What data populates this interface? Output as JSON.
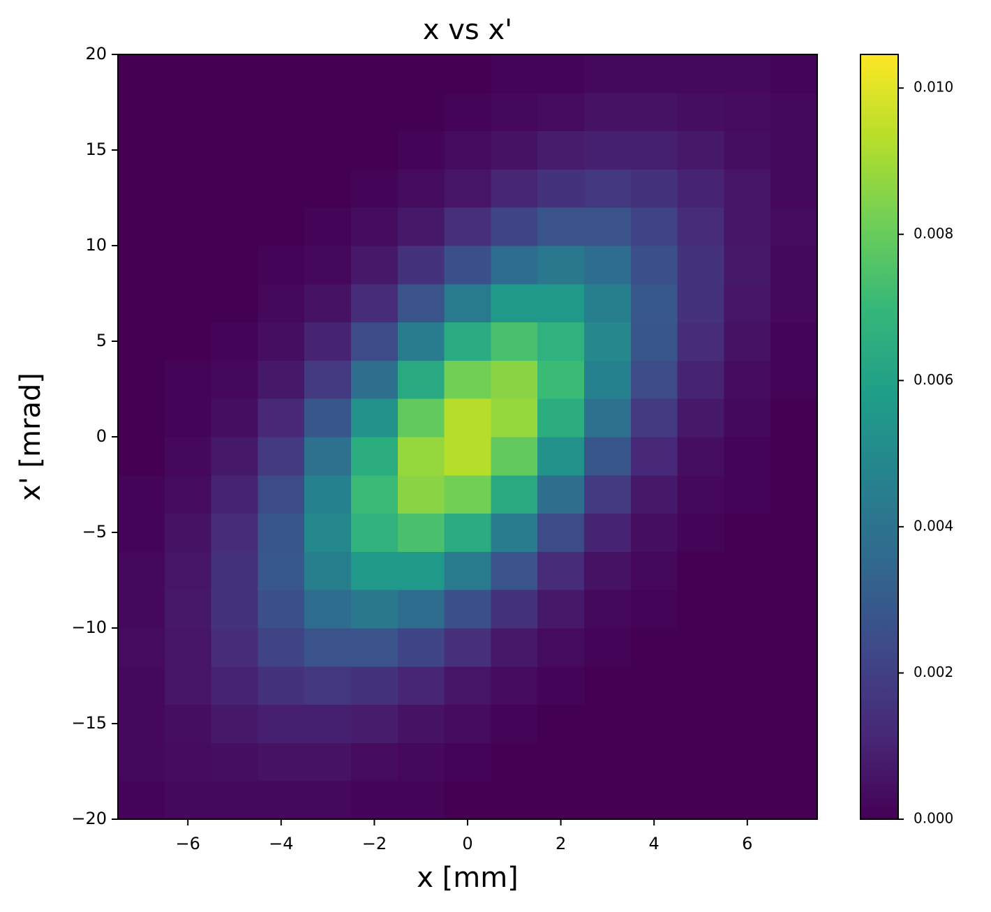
{
  "chart_data": {
    "type": "heatmap",
    "title": "x vs x'",
    "xlabel": "x [mm]",
    "ylabel": "x' [mrad]",
    "xlim": [
      -7.5,
      7.5
    ],
    "ylim": [
      -20,
      20
    ],
    "xticks": [
      {
        "value": -6,
        "label": "−6"
      },
      {
        "value": -4,
        "label": "−4"
      },
      {
        "value": -2,
        "label": "−2"
      },
      0,
      2,
      4,
      6
    ],
    "yticks": [
      {
        "value": -20,
        "label": "−20"
      },
      {
        "value": -15,
        "label": "−15"
      },
      {
        "value": -10,
        "label": "−10"
      },
      {
        "value": -5,
        "label": "−5"
      },
      0,
      5,
      10,
      15,
      20
    ],
    "x_bins": [
      -7.5,
      -6.5,
      -5.5,
      -4.5,
      -3.5,
      -2.5,
      -1.5,
      -0.5,
      0.5,
      1.5,
      2.5,
      3.5,
      4.5,
      5.5,
      6.5,
      7.5
    ],
    "y_bins": [
      -20,
      -18,
      -16,
      -14,
      -12,
      -10,
      -8,
      -6,
      -4,
      -2,
      0,
      2,
      4,
      6,
      8,
      10,
      12,
      14,
      16,
      18,
      20
    ],
    "z": [
      [
        0.0001,
        0.0002,
        0.0002,
        0.0002,
        0.0002,
        0.0001,
        0.0001,
        0,
        0,
        0,
        0,
        0,
        0,
        0,
        0
      ],
      [
        0.0002,
        0.0003,
        0.0004,
        0.0005,
        0.0005,
        0.0003,
        0.0002,
        0.0001,
        0,
        0,
        0,
        0,
        0,
        0,
        0
      ],
      [
        0.0002,
        0.0004,
        0.0007,
        0.0009,
        0.0009,
        0.0008,
        0.0005,
        0.0003,
        0.0001,
        0,
        0,
        0,
        0,
        0,
        0
      ],
      [
        0.0002,
        0.0006,
        0.001,
        0.0015,
        0.0017,
        0.0015,
        0.0011,
        0.0006,
        0.0003,
        0.0001,
        0,
        0,
        0,
        0,
        0
      ],
      [
        0.0003,
        0.0006,
        0.0013,
        0.0021,
        0.0027,
        0.0027,
        0.0022,
        0.0014,
        0.0007,
        0.0003,
        0.0001,
        0,
        0,
        0,
        0
      ],
      [
        0.0002,
        0.0007,
        0.0015,
        0.0026,
        0.0037,
        0.0042,
        0.0037,
        0.0026,
        0.0015,
        0.0007,
        0.0002,
        0.0001,
        0,
        0,
        0
      ],
      [
        0.0002,
        0.0006,
        0.0015,
        0.0029,
        0.0045,
        0.0056,
        0.0056,
        0.0043,
        0.0027,
        0.0013,
        0.0005,
        0.0002,
        0,
        0,
        0
      ],
      [
        0.0001,
        0.0005,
        0.0013,
        0.0028,
        0.0049,
        0.0067,
        0.0074,
        0.0064,
        0.0044,
        0.0024,
        0.001,
        0.0004,
        0.0001,
        0,
        0
      ],
      [
        0.0001,
        0.0003,
        0.001,
        0.0024,
        0.0046,
        0.0071,
        0.0086,
        0.0082,
        0.0063,
        0.0038,
        0.0018,
        0.0007,
        0.0002,
        0.0001,
        0
      ],
      [
        0,
        0.0002,
        0.0007,
        0.0018,
        0.0039,
        0.0065,
        0.0088,
        0.0093,
        0.0079,
        0.0053,
        0.0028,
        0.0012,
        0.0004,
        0.0001,
        0
      ],
      [
        0,
        0.0001,
        0.0004,
        0.0012,
        0.0028,
        0.0053,
        0.0079,
        0.0093,
        0.0088,
        0.0065,
        0.0039,
        0.0018,
        0.0007,
        0.0002,
        0
      ],
      [
        0,
        0.0001,
        0.0002,
        0.0007,
        0.0018,
        0.0038,
        0.0063,
        0.0082,
        0.0086,
        0.0071,
        0.0046,
        0.0024,
        0.001,
        0.0003,
        0.0001
      ],
      [
        0,
        0,
        0.0001,
        0.0004,
        0.001,
        0.0024,
        0.0044,
        0.0064,
        0.0074,
        0.0067,
        0.0049,
        0.0028,
        0.0013,
        0.0005,
        0.0001
      ],
      [
        0,
        0,
        0,
        0.0002,
        0.0005,
        0.0013,
        0.0027,
        0.0043,
        0.0056,
        0.0056,
        0.0045,
        0.0029,
        0.0015,
        0.0006,
        0.0002
      ],
      [
        0,
        0,
        0,
        0.0001,
        0.0002,
        0.0007,
        0.0015,
        0.0026,
        0.0037,
        0.0042,
        0.0037,
        0.0026,
        0.0015,
        0.0007,
        0.0002
      ],
      [
        0,
        0,
        0,
        0,
        0.0001,
        0.0003,
        0.0007,
        0.0014,
        0.0022,
        0.0027,
        0.0027,
        0.0021,
        0.0013,
        0.0006,
        0.0003
      ],
      [
        0,
        0,
        0,
        0,
        0,
        0.0001,
        0.0003,
        0.0006,
        0.0011,
        0.0015,
        0.0017,
        0.0015,
        0.001,
        0.0006,
        0.0002
      ],
      [
        0,
        0,
        0,
        0,
        0,
        0,
        0.0001,
        0.0003,
        0.0005,
        0.0008,
        0.0009,
        0.0009,
        0.0007,
        0.0004,
        0.0002
      ],
      [
        0,
        0,
        0,
        0,
        0,
        0,
        0,
        0.0001,
        0.0002,
        0.0003,
        0.0005,
        0.0005,
        0.0004,
        0.0003,
        0.0002
      ],
      [
        0,
        0,
        0,
        0,
        0,
        0,
        0,
        0,
        0.0001,
        0.0001,
        0.0002,
        0.0002,
        0.0002,
        0.0002,
        0.0001
      ]
    ],
    "clim": [
      0,
      0.01046
    ],
    "cticks": [
      {
        "value": 0,
        "label": "0.000"
      },
      {
        "value": 0.002,
        "label": "0.002"
      },
      {
        "value": 0.004,
        "label": "0.004"
      },
      {
        "value": 0.006,
        "label": "0.006"
      },
      {
        "value": 0.008,
        "label": "0.008"
      },
      {
        "value": 0.01,
        "label": "0.010"
      }
    ],
    "colorscale": [
      "#440154",
      "#482878",
      "#3e4989",
      "#31688e",
      "#26828e",
      "#1f9e89",
      "#35b779",
      "#6ece58",
      "#b5de2b",
      "#fde725"
    ]
  }
}
